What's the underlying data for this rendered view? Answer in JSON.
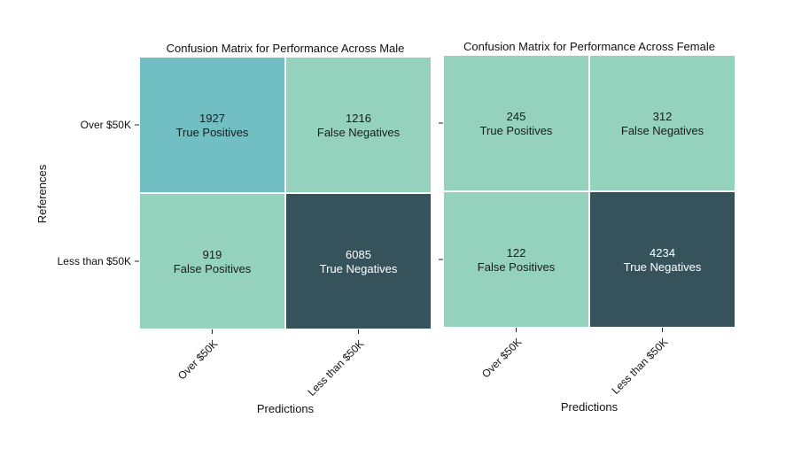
{
  "chart_data": [
    {
      "type": "heatmap",
      "title": "Confusion Matrix for Performance Across Male",
      "xlabel": "Predictions",
      "ylabel": "References",
      "x_categories": [
        "Over $50K",
        "Less than $50K"
      ],
      "y_categories": [
        "Over $50K",
        "Less than $50K"
      ],
      "cells": [
        [
          {
            "value": 1927,
            "label": "True Positives"
          },
          {
            "value": 1216,
            "label": "False Negatives"
          }
        ],
        [
          {
            "value": 919,
            "label": "False Positives"
          },
          {
            "value": 6085,
            "label": "True Negatives"
          }
        ]
      ],
      "colors": [
        [
          "#72bfc3",
          "#95d2bd"
        ],
        [
          "#95d2bd",
          "#36535c"
        ]
      ],
      "text_colors": [
        [
          "#1a1a1a",
          "#1a1a1a"
        ],
        [
          "#1a1a1a",
          "#ffffff"
        ]
      ]
    },
    {
      "type": "heatmap",
      "title": "Confusion Matrix for Performance Across Female",
      "xlabel": "Predictions",
      "ylabel": "",
      "x_categories": [
        "Over $50K",
        "Less than $50K"
      ],
      "y_categories": [
        "",
        ""
      ],
      "cells": [
        [
          {
            "value": 245,
            "label": "True Positives"
          },
          {
            "value": 312,
            "label": "False Negatives"
          }
        ],
        [
          {
            "value": 122,
            "label": "False Positives"
          },
          {
            "value": 4234,
            "label": "True Negatives"
          }
        ]
      ],
      "colors": [
        [
          "#95d2bd",
          "#95d2bd"
        ],
        [
          "#95d2bd",
          "#36535c"
        ]
      ],
      "text_colors": [
        [
          "#1a1a1a",
          "#1a1a1a"
        ],
        [
          "#1a1a1a",
          "#ffffff"
        ]
      ]
    }
  ]
}
